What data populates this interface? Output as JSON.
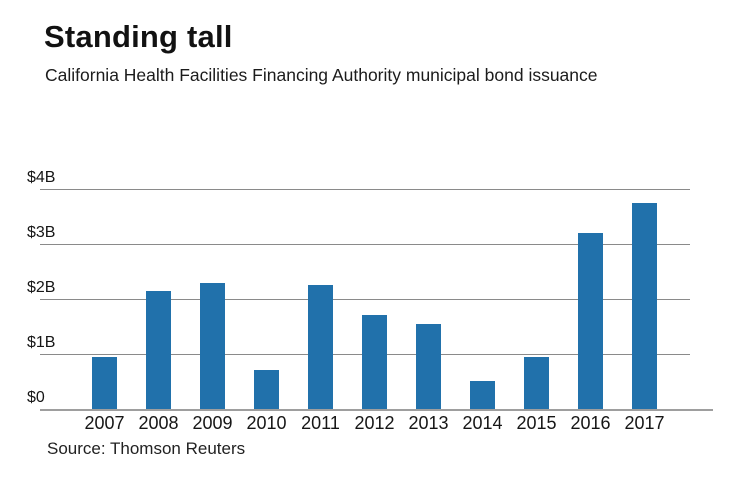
{
  "header": {
    "title": "Standing tall",
    "subtitle": "California Health Facilities Financing Authority municipal bond issuance"
  },
  "chart_data": {
    "type": "bar",
    "title": "Standing tall",
    "subtitle": "California Health Facilities Financing Authority municipal bond issuance",
    "categories": [
      "2007",
      "2008",
      "2009",
      "2010",
      "2011",
      "2012",
      "2013",
      "2014",
      "2015",
      "2016",
      "2017"
    ],
    "values": [
      0.95,
      2.15,
      2.3,
      0.7,
      2.25,
      1.7,
      1.55,
      0.5,
      0.95,
      3.2,
      3.75
    ],
    "unit": "billions of dollars",
    "xlabel": "",
    "ylabel": "",
    "ylim": [
      0,
      4
    ],
    "y_ticks": [
      {
        "value": 4,
        "label": "$4B"
      },
      {
        "value": 3,
        "label": "$3B"
      },
      {
        "value": 2,
        "label": "$2B"
      },
      {
        "value": 1,
        "label": "$1B"
      },
      {
        "value": 0,
        "label": "$0"
      }
    ],
    "grid": true,
    "legend": false,
    "source": "Source: Thomson Reuters"
  },
  "colors": {
    "bar": "#2171ab",
    "gridline": "#8a8a8a",
    "baseline": "#9e9e9e",
    "text": "#161616",
    "background": "#ffffff"
  }
}
